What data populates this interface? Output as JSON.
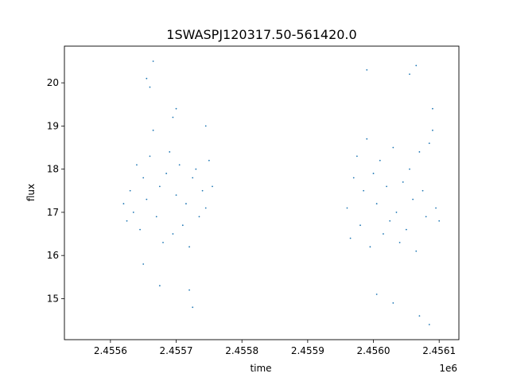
{
  "chart_data": {
    "type": "scatter",
    "title": "1SWASPJ120317.50-561420.0",
    "xlabel": "time",
    "ylabel": "flux",
    "x_offset_label": "1e6",
    "xlim": [
      2.45553,
      2.45613
    ],
    "ylim": [
      14.05,
      20.85
    ],
    "x_ticks": [
      2.4556,
      2.4557,
      2.4558,
      2.4559,
      2.456,
      2.4561
    ],
    "x_tick_labels": [
      "2.4556",
      "2.4557",
      "2.4558",
      "2.4559",
      "2.4560",
      "2.4561"
    ],
    "y_ticks": [
      15,
      16,
      17,
      18,
      19,
      20
    ],
    "y_tick_labels": [
      "15",
      "16",
      "17",
      "18",
      "19",
      "20"
    ],
    "grid": false,
    "marker_color": "#1f77b4",
    "series": [
      {
        "points": [
          [
            2.45562,
            17.2
          ],
          [
            2.455625,
            16.8
          ],
          [
            2.45563,
            17.5
          ],
          [
            2.455635,
            17.0
          ],
          [
            2.45564,
            18.1
          ],
          [
            2.455645,
            16.6
          ],
          [
            2.45565,
            17.8
          ],
          [
            2.455655,
            17.3
          ],
          [
            2.45566,
            18.3
          ],
          [
            2.455665,
            18.9
          ],
          [
            2.45567,
            16.9
          ],
          [
            2.455675,
            17.6
          ],
          [
            2.45568,
            16.3
          ],
          [
            2.455685,
            17.9
          ],
          [
            2.45569,
            18.4
          ],
          [
            2.455695,
            16.5
          ],
          [
            2.4557,
            17.4
          ],
          [
            2.455705,
            18.1
          ],
          [
            2.45571,
            16.7
          ],
          [
            2.455715,
            17.2
          ],
          [
            2.45572,
            16.2
          ],
          [
            2.455725,
            17.8
          ],
          [
            2.45573,
            18.0
          ],
          [
            2.455735,
            16.9
          ],
          [
            2.45574,
            17.5
          ],
          [
            2.455745,
            17.1
          ],
          [
            2.45575,
            18.2
          ],
          [
            2.455755,
            17.6
          ],
          [
            2.455655,
            20.1
          ],
          [
            2.45566,
            19.9
          ],
          [
            2.455665,
            20.5
          ],
          [
            2.455695,
            19.2
          ],
          [
            2.4557,
            19.4
          ],
          [
            2.45572,
            15.2
          ],
          [
            2.455725,
            14.8
          ],
          [
            2.455745,
            19.0
          ],
          [
            2.45565,
            15.8
          ],
          [
            2.455675,
            15.3
          ],
          [
            2.45596,
            17.1
          ],
          [
            2.455965,
            16.4
          ],
          [
            2.45597,
            17.8
          ],
          [
            2.455975,
            18.3
          ],
          [
            2.45598,
            16.7
          ],
          [
            2.455985,
            17.5
          ],
          [
            2.45599,
            18.7
          ],
          [
            2.455995,
            16.2
          ],
          [
            2.456,
            17.9
          ],
          [
            2.456005,
            17.2
          ],
          [
            2.45601,
            18.2
          ],
          [
            2.456015,
            16.5
          ],
          [
            2.45602,
            17.6
          ],
          [
            2.456025,
            16.8
          ],
          [
            2.45603,
            18.5
          ],
          [
            2.456035,
            17.0
          ],
          [
            2.45604,
            16.3
          ],
          [
            2.456045,
            17.7
          ],
          [
            2.45605,
            16.6
          ],
          [
            2.456055,
            18.0
          ],
          [
            2.45606,
            17.3
          ],
          [
            2.456065,
            16.1
          ],
          [
            2.45607,
            18.4
          ],
          [
            2.456075,
            17.5
          ],
          [
            2.45608,
            16.9
          ],
          [
            2.456085,
            18.6
          ],
          [
            2.45609,
            18.9
          ],
          [
            2.456095,
            17.1
          ],
          [
            2.4561,
            16.8
          ],
          [
            2.45599,
            20.3
          ],
          [
            2.45603,
            14.9
          ],
          [
            2.456055,
            20.2
          ],
          [
            2.456065,
            20.4
          ],
          [
            2.45607,
            14.6
          ],
          [
            2.456085,
            14.4
          ],
          [
            2.456005,
            15.1
          ],
          [
            2.45609,
            19.4
          ]
        ]
      }
    ]
  }
}
